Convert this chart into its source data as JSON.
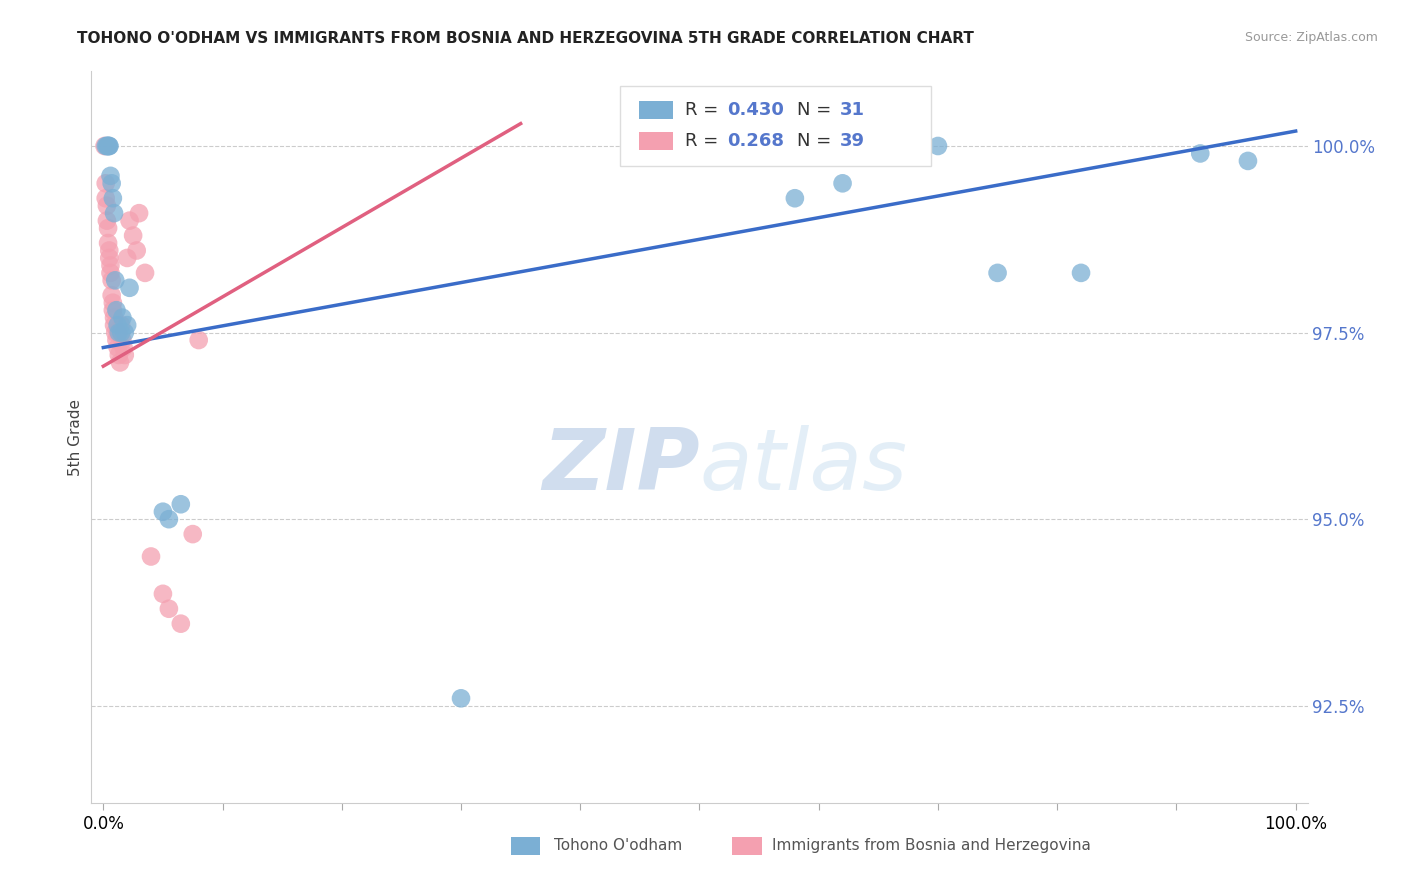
{
  "title": "TOHONO O'ODHAM VS IMMIGRANTS FROM BOSNIA AND HERZEGOVINA 5TH GRADE CORRELATION CHART",
  "source": "Source: ZipAtlas.com",
  "ylabel": "5th Grade",
  "xlim": [
    0.0,
    1.0
  ],
  "ylim": [
    91.2,
    101.0
  ],
  "yticks": [
    92.5,
    95.0,
    97.5,
    100.0
  ],
  "blue_R": 0.43,
  "blue_N": 31,
  "pink_R": 0.268,
  "pink_N": 39,
  "blue_label": "Tohono O'odham",
  "pink_label": "Immigrants from Bosnia and Herzegovina",
  "blue_color": "#7BAFD4",
  "pink_color": "#F4A0B0",
  "blue_line_color": "#3A6CC8",
  "pink_line_color": "#E06080",
  "label_color": "#5577CC",
  "blue_x": [
    0.002,
    0.003,
    0.004,
    0.004,
    0.005,
    0.005,
    0.006,
    0.007,
    0.008,
    0.009,
    0.01,
    0.011,
    0.012,
    0.013,
    0.015,
    0.016,
    0.018,
    0.02,
    0.022,
    0.05,
    0.055,
    0.065,
    0.3,
    0.58,
    0.62,
    0.67,
    0.7,
    0.75,
    0.82,
    0.92,
    0.96
  ],
  "blue_y": [
    100.0,
    100.0,
    100.0,
    100.0,
    100.0,
    100.0,
    99.6,
    99.5,
    99.3,
    99.1,
    98.2,
    97.8,
    97.6,
    97.5,
    97.5,
    97.7,
    97.5,
    97.6,
    98.1,
    95.1,
    95.0,
    95.2,
    92.6,
    99.3,
    99.5,
    100.0,
    100.0,
    98.3,
    98.3,
    99.9,
    99.8
  ],
  "pink_x": [
    0.001,
    0.002,
    0.002,
    0.003,
    0.003,
    0.004,
    0.004,
    0.005,
    0.005,
    0.006,
    0.006,
    0.007,
    0.007,
    0.008,
    0.008,
    0.009,
    0.009,
    0.01,
    0.011,
    0.012,
    0.012,
    0.013,
    0.014,
    0.015,
    0.016,
    0.017,
    0.018,
    0.02,
    0.022,
    0.025,
    0.028,
    0.03,
    0.035,
    0.04,
    0.05,
    0.055,
    0.065,
    0.075,
    0.08
  ],
  "pink_y": [
    100.0,
    99.5,
    99.3,
    99.2,
    99.0,
    98.9,
    98.7,
    98.6,
    98.5,
    98.4,
    98.3,
    98.2,
    98.0,
    97.9,
    97.8,
    97.7,
    97.6,
    97.5,
    97.4,
    97.3,
    97.5,
    97.2,
    97.1,
    97.6,
    97.4,
    97.3,
    97.2,
    98.5,
    99.0,
    98.8,
    98.6,
    99.1,
    98.3,
    94.5,
    94.0,
    93.8,
    93.6,
    94.8,
    97.4
  ]
}
